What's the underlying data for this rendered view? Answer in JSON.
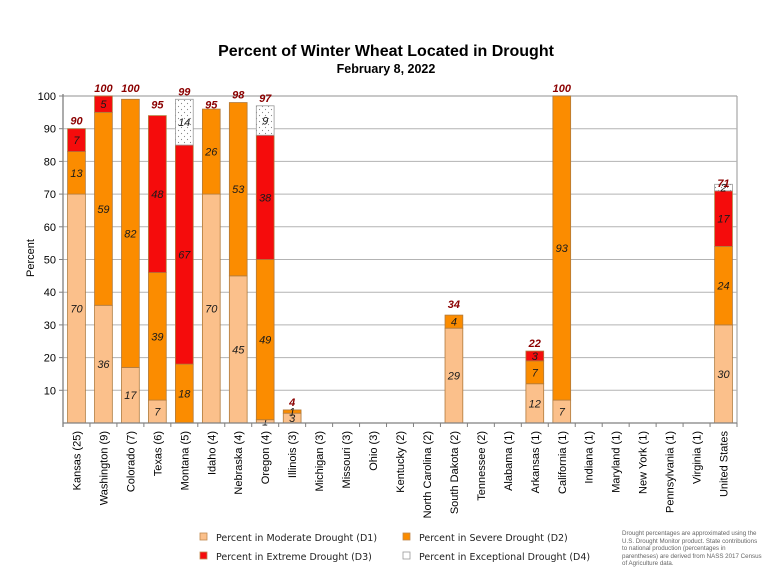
{
  "chart_data": {
    "type": "bar",
    "stacked": true,
    "title": "Percent of Winter Wheat Located in Drought",
    "subtitle": "February 8, 2022",
    "xlabel": "",
    "ylabel": "Percent",
    "ylim": [
      0,
      100
    ],
    "yticks": [
      10,
      20,
      30,
      40,
      50,
      60,
      70,
      80,
      90,
      100
    ],
    "grid": true,
    "legend_position": "bottom",
    "categories": [
      "Kansas (25)",
      "Washington (9)",
      "Colorado (7)",
      "Texas (6)",
      "Montana (5)",
      "Idaho (4)",
      "Nebraska (4)",
      "Oregon (4)",
      "Illinois (3)",
      "Michigan (3)",
      "Missouri (3)",
      "Ohio (3)",
      "Kentucky (2)",
      "North Carolina (2)",
      "South Dakota (2)",
      "Tennessee (2)",
      "Alabama (1)",
      "Arkansas (1)",
      "California (1)",
      "Indiana (1)",
      "Maryland (1)",
      "New York (1)",
      "Pennsylvania (1)",
      "Virginia (1)",
      "United States"
    ],
    "series": [
      {
        "name": "Percent in Moderate Drought (D1)",
        "color": "#fbc08b",
        "values": [
          70,
          36,
          17,
          7,
          0,
          70,
          45,
          1,
          3,
          0,
          0,
          0,
          0,
          0,
          29,
          0,
          0,
          12,
          7,
          0,
          0,
          0,
          0,
          0,
          30
        ]
      },
      {
        "name": "Percent in Severe Drought (D2)",
        "color": "#fb8c00",
        "values": [
          13,
          59,
          82,
          39,
          18,
          26,
          53,
          49,
          1,
          0,
          0,
          0,
          0,
          0,
          4,
          0,
          0,
          7,
          93,
          0,
          0,
          0,
          0,
          0,
          24
        ]
      },
      {
        "name": "Percent in Extreme Drought (D3)",
        "color": "#f50c0c",
        "values": [
          7,
          5,
          0,
          48,
          67,
          0,
          0,
          38,
          0,
          0,
          0,
          0,
          0,
          0,
          0,
          0,
          0,
          3,
          0,
          0,
          0,
          0,
          0,
          0,
          17
        ]
      },
      {
        "name": "Percent in Exceptional Drought (D4)",
        "color": "#ffffff",
        "values": [
          0,
          0,
          0,
          0,
          14,
          0,
          0,
          9,
          0,
          0,
          0,
          0,
          0,
          0,
          0,
          0,
          0,
          0,
          0,
          0,
          0,
          0,
          0,
          0,
          2
        ]
      }
    ],
    "totals": [
      90,
      100,
      100,
      95,
      99,
      95,
      98,
      97,
      4,
      null,
      null,
      null,
      null,
      null,
      34,
      null,
      null,
      22,
      100,
      null,
      null,
      null,
      null,
      null,
      71
    ]
  },
  "footnote": "Drought percentages are approximated using the U.S. Drought Monitor product. State contributions to national production (percentages in parentheses) are derived from NASS 2017 Census of Agriculture data."
}
